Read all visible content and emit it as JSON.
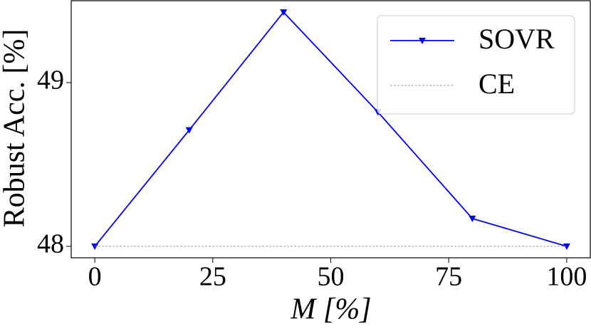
{
  "chart_data": {
    "type": "line",
    "xlabel": "M [%]",
    "ylabel": "Robust Acc. [%]",
    "x": [
      0,
      20,
      40,
      60,
      80,
      100
    ],
    "series": [
      {
        "name": "SOVR",
        "color": "#0000ff",
        "marker": "v",
        "linestyle": "solid",
        "values": [
          48.0,
          48.71,
          49.43,
          48.82,
          48.17,
          48.0
        ]
      },
      {
        "name": "CE",
        "color": "#808080",
        "marker": "none",
        "linestyle": "dashed",
        "values": [
          48.0,
          48.0,
          48.0,
          48.0,
          48.0,
          48.0
        ]
      }
    ],
    "xlim": [
      -5,
      105
    ],
    "ylim": [
      47.93,
      49.5
    ],
    "xticks": [
      0,
      25,
      50,
      75,
      100
    ],
    "yticks": [
      48,
      49
    ],
    "grid": false,
    "legend": "upper right"
  }
}
